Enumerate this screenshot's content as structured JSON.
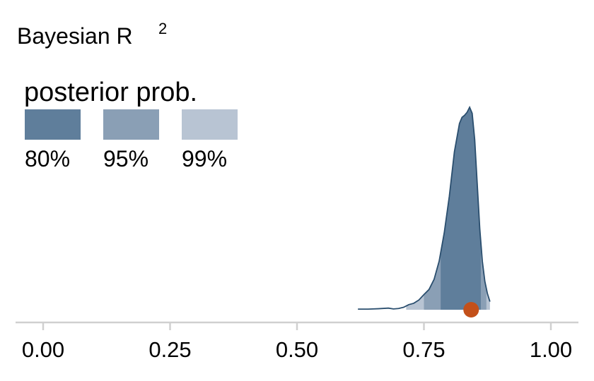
{
  "chart_data": {
    "type": "area",
    "title": "Bayesian R",
    "title_superscript": "2",
    "xlim": [
      0,
      1
    ],
    "x_ticks": [
      0,
      0.25,
      0.5,
      0.75,
      1
    ],
    "x_tick_labels": [
      "0.00",
      "0.25",
      "0.50",
      "0.75",
      "1.00"
    ],
    "density": {
      "x": [
        0.62,
        0.64,
        0.66,
        0.68,
        0.69,
        0.7,
        0.71,
        0.72,
        0.73,
        0.74,
        0.75,
        0.76,
        0.77,
        0.78,
        0.79,
        0.8,
        0.81,
        0.82,
        0.825,
        0.83,
        0.835,
        0.84,
        0.845,
        0.85,
        0.855,
        0.86,
        0.865,
        0.87,
        0.875,
        0.88
      ],
      "y": [
        0.003,
        0.003,
        0.005,
        0.008,
        0.004,
        0.006,
        0.012,
        0.025,
        0.032,
        0.048,
        0.075,
        0.1,
        0.15,
        0.24,
        0.38,
        0.56,
        0.78,
        0.92,
        0.95,
        0.96,
        0.975,
        1.0,
        0.97,
        0.84,
        0.62,
        0.4,
        0.24,
        0.14,
        0.08,
        0.04
      ]
    },
    "intervals": [
      {
        "label": "80%",
        "lower": 0.783,
        "upper": 0.862,
        "color": "#5f7e9b"
      },
      {
        "label": "95%",
        "lower": 0.75,
        "upper": 0.873,
        "color": "#8a9fb5"
      },
      {
        "label": "99%",
        "lower": 0.715,
        "upper": 0.88,
        "color": "#b8c4d3"
      }
    ],
    "point_estimate": 0.843,
    "point_color": "#c3501a",
    "outline_color": "#2a4e6e",
    "axis_color": "#d0d0d0",
    "legend": {
      "title": "posterior prob.",
      "placement": "top-left"
    }
  }
}
